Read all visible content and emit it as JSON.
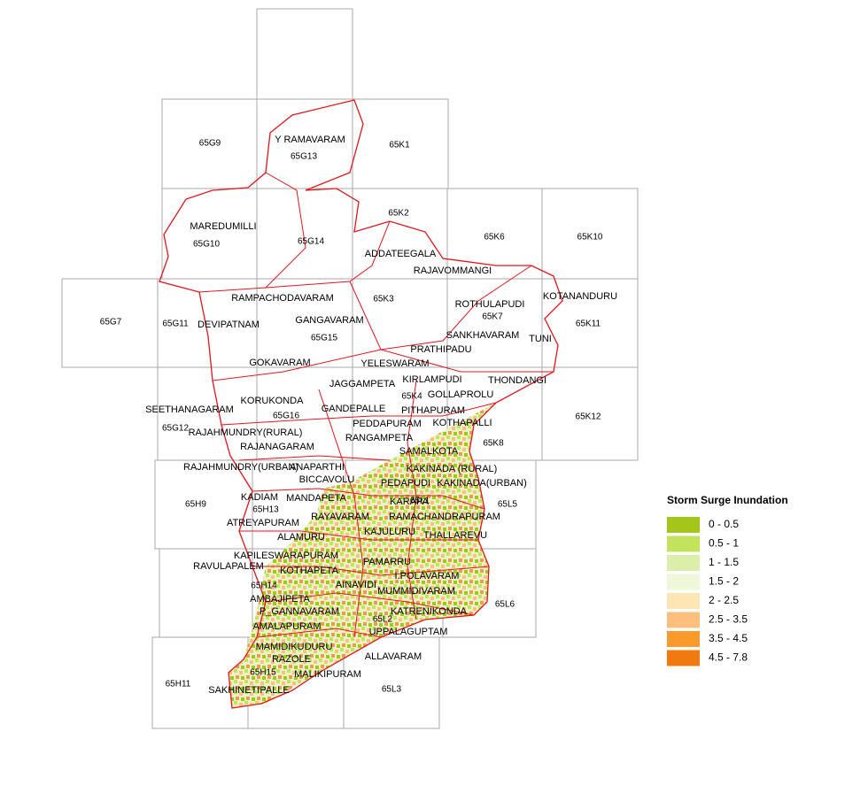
{
  "map_sheets": [
    "65G9",
    "65K1",
    "65G13",
    "65K2",
    "65G10",
    "65G14",
    "65K6",
    "65K10",
    "65G7",
    "65G11",
    "65K3",
    "65G15",
    "65K7",
    "65K11",
    "65K4",
    "65G16",
    "65G12",
    "65K12",
    "65K8",
    "65H9",
    "65H13",
    "65L1",
    "65L5",
    "65H14",
    "65L2",
    "65L6",
    "65H15",
    "65H11",
    "65L3"
  ],
  "mandals": [
    "Y RAMAVARAM",
    "MAREDUMILLI",
    "ADDATEEGALA",
    "RAJAVOMMANGI",
    "KOTANANDURU",
    "RAMPACHODAVARAM",
    "ROTHULAPUDI",
    "GANGAVARAM",
    "DEVIPATNAM",
    "SANKHAVARAM",
    "TUNI",
    "PRATHIPADU",
    "GOKAVARAM",
    "YELESWARAM",
    "KIRLAMPUDI",
    "THONDANGI",
    "JAGGAMPETA",
    "GOLLAPROLU",
    "KORUKONDA",
    "SEETHANAGARAM",
    "GANDEPALLE",
    "PITHAPURAM",
    "KOTHAPALLI",
    "PEDDAPURAM",
    "RAJAHMUNDRY(RURAL)",
    "RANGAMPETA",
    "RAJANAGARAM",
    "SAMALKOTA",
    "RAJAHMUNDRY(URBAN)",
    "ANAPARTHI",
    "KAKINADA (RURAL)",
    "BICCAVOLU",
    "PEDAPUDI",
    "KAKINADA(URBAN)",
    "KADIAM",
    "MANDAPETA",
    "KARAPA",
    "RAYAVARAM",
    "RAMACHANDRAPURAM",
    "ATREYAPURAM",
    "KAJULURU",
    "THALLAREVU",
    "ALAMURU",
    "KAPILESWARAPURAM",
    "RAVULAPALEM",
    "KOTHAPETA",
    "PAMARRU",
    "I.POLAVARAM",
    "AINAVIDI",
    "MUMMIDIVARAM",
    "AMBAJIPETA",
    "P_GANNAVARAM",
    "KATRENIKONDA",
    "AMALAPURAM",
    "UPPALAGUPTAM",
    "MAMIDIKUDURU",
    "RAZOLE",
    "ALLAVARAM",
    "MALIKIPURAM",
    "SAKHINETIPALLE"
  ],
  "legend": {
    "title": "Storm Surge Inundation",
    "items": [
      {
        "label": "0 - 0.5",
        "color": "#a4c61a"
      },
      {
        "label": "0.5 - 1",
        "color": "#c3e35d"
      },
      {
        "label": "1 - 1.5",
        "color": "#dbeeaa"
      },
      {
        "label": "1.5 - 2",
        "color": "#eef8d8"
      },
      {
        "label": "2 - 2.5",
        "color": "#fde6b4"
      },
      {
        "label": "2.5 - 3.5",
        "color": "#fdbf7c"
      },
      {
        "label": "3.5 - 4.5",
        "color": "#fb9a2c"
      },
      {
        "label": "4.5 - 7.8",
        "color": "#f07a10"
      }
    ]
  }
}
